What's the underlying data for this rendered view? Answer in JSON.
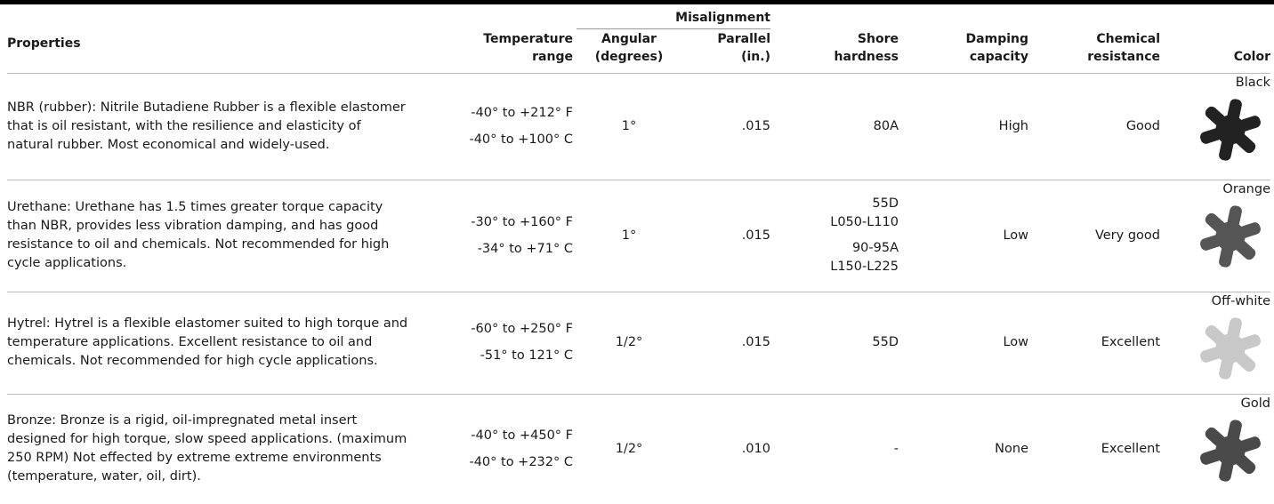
{
  "header": {
    "properties": "Properties",
    "temperature": "Temperature range",
    "misalignment": "Misalignment",
    "angular": "Angular (degrees)",
    "parallel": "Parallel (in.)",
    "shore": "Shore hardness",
    "damping": "Damping capacity",
    "chemical": "Chemical resistance",
    "color": "Color"
  },
  "rows": [
    {
      "properties": "NBR (rubber): Nitrile Butadiene Rubber is a flexible elastomer that is oil resistant, with the resilience and elasticity of natural rubber. Most economical and widely-used.",
      "temp_f": "-40° to +212° F",
      "temp_c": "-40° to +100° C",
      "angular": "1°",
      "parallel": ".015",
      "shore": [
        [
          "80A"
        ]
      ],
      "damping": "High",
      "chemical": "Good",
      "color": "Black"
    },
    {
      "properties": "Urethane: Urethane has 1.5 times greater torque capacity than NBR, provides less vibration damping, and has good resistance to oil and chemicals. Not recommended for high cycle applications.",
      "temp_f": "-30° to +160° F",
      "temp_c": "-34° to +71° C",
      "angular": "1°",
      "parallel": ".015",
      "shore": [
        [
          "55D",
          "L050-L110"
        ],
        [
          "90-95A",
          "L150-L225"
        ]
      ],
      "damping": "Low",
      "chemical": "Very good",
      "color": "Orange"
    },
    {
      "properties": "Hytrel: Hytrel is a flexible elastomer suited to high torque and temperature applications. Excellent resistance to oil and chemicals. Not recommended for high cycle applications.",
      "temp_f": "-60° to +250° F",
      "temp_c": "-51° to 121° C",
      "angular": "1/2°",
      "parallel": ".015",
      "shore": [
        [
          "55D"
        ]
      ],
      "damping": "Low",
      "chemical": "Excellent",
      "color": "Off-white"
    },
    {
      "properties": "Bronze: Bronze is a rigid, oil-impregnated metal insert designed for high torque, slow speed applications. (maximum 250 RPM) Not effected by extreme extreme environments (temperature, water, oil, dirt).",
      "temp_f": "-40° to +450° F",
      "temp_c": "-40° to +232° C",
      "angular": "1/2°",
      "parallel": ".010",
      "shore": [
        [
          "-"
        ]
      ],
      "damping": "None",
      "chemical": "Excellent",
      "color": "Gold"
    }
  ]
}
